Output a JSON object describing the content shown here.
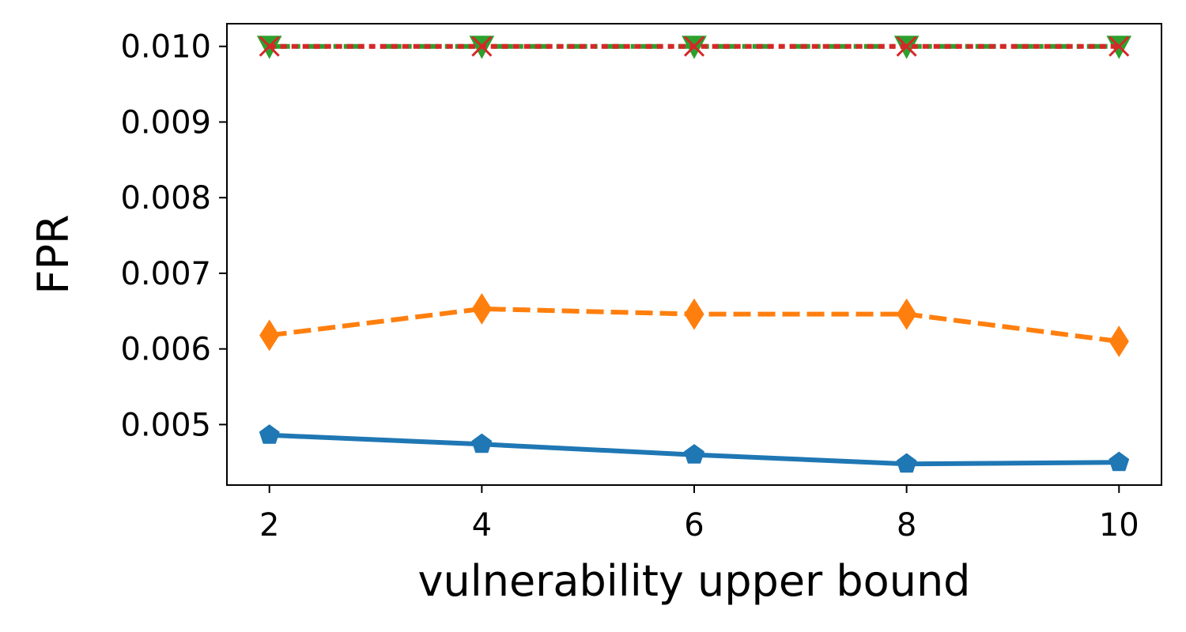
{
  "chart_data": {
    "type": "line",
    "title": "",
    "xlabel": "vulnerability upper bound",
    "ylabel": "FPR",
    "x": [
      2,
      4,
      6,
      8,
      10
    ],
    "xticks": [
      "2",
      "4",
      "6",
      "8",
      "10"
    ],
    "xlim": [
      1.6,
      10.4
    ],
    "yticks": [
      "0.005",
      "0.006",
      "0.007",
      "0.008",
      "0.009",
      "0.010"
    ],
    "ylim": [
      0.0042,
      0.0103
    ],
    "grid": false,
    "legend": "none",
    "series": [
      {
        "values": [
          0.00486,
          0.00474,
          0.0046,
          0.00448,
          0.0045
        ],
        "color": "#1f77b4",
        "line_style": "solid",
        "marker": "pentagon"
      },
      {
        "values": [
          0.00618,
          0.00653,
          0.00646,
          0.00646,
          0.0061
        ],
        "color": "#ff7f0e",
        "line_style": "dashed",
        "marker": "thin-diamond"
      },
      {
        "values": [
          0.01,
          0.01,
          0.01,
          0.01,
          0.01
        ],
        "color": "#2ca02c",
        "line_style": "dash-dot",
        "marker": "triangle-down"
      },
      {
        "values": [
          0.01,
          0.01,
          0.01,
          0.01,
          0.01
        ],
        "color": "#d62728",
        "line_style": "dotted",
        "marker": "x"
      }
    ]
  }
}
